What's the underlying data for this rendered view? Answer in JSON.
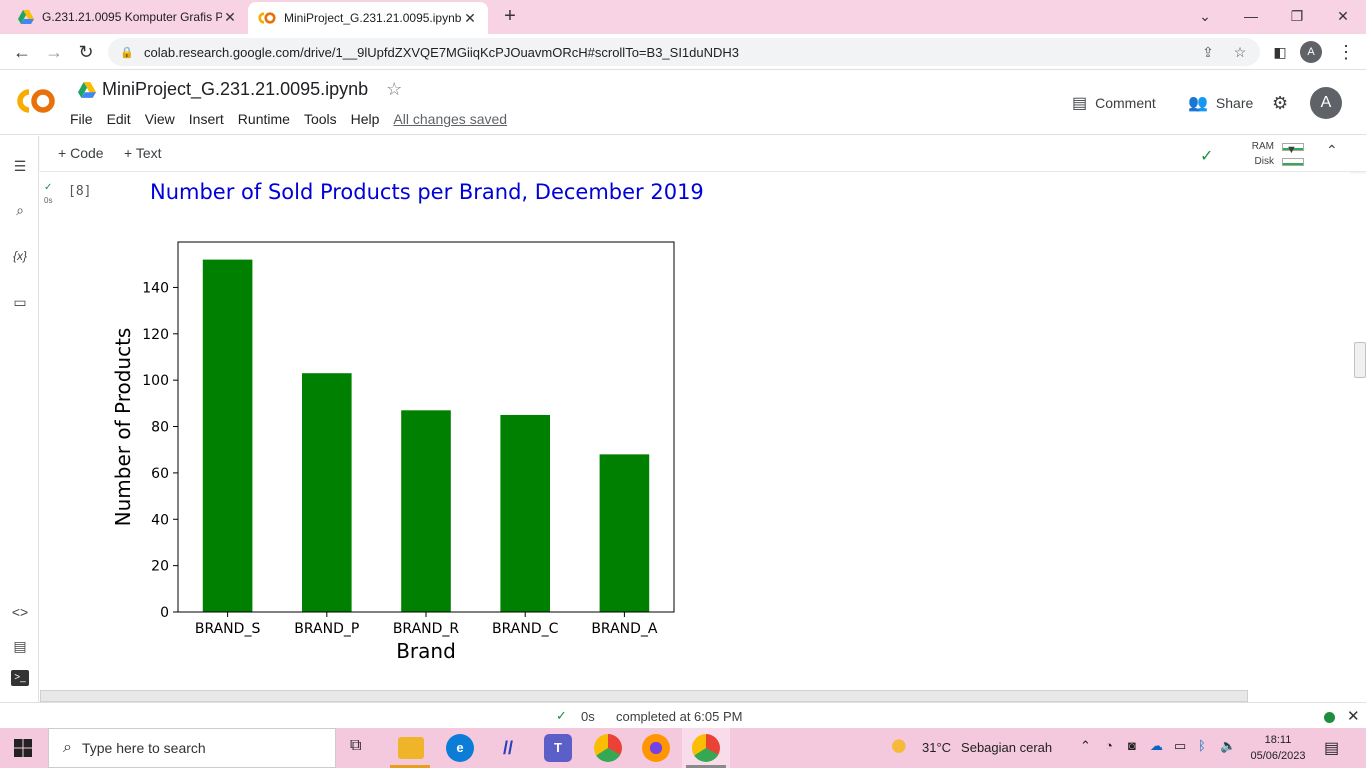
{
  "browser": {
    "tabs": [
      {
        "title": "G.231.21.0095 Komputer Grafis P",
        "active": false
      },
      {
        "title": "MiniProject_G.231.21.0095.ipynb",
        "active": true
      }
    ],
    "url": "colab.research.google.com/drive/1__9lUpfdZXVQE7MGiiqKcPJOuavmORcH#scrollTo=B3_SI1duNDH3",
    "profile_initial": "A"
  },
  "colab": {
    "notebook_title": "MiniProject_G.231.21.0095.ipynb",
    "menu": [
      "File",
      "Edit",
      "View",
      "Insert",
      "Runtime",
      "Tools",
      "Help"
    ],
    "saved_status": "All changes saved",
    "comment_label": "Comment",
    "share_label": "Share",
    "avatar_initial": "A",
    "toolbar": {
      "add_code": "Code",
      "add_text": "Text",
      "ram_label": "RAM",
      "disk_label": "Disk"
    }
  },
  "cell": {
    "exec_count": "[8]",
    "run_time": "0s"
  },
  "chart_data": {
    "type": "bar",
    "title": "Number of Sold Products per Brand, December 2019",
    "xlabel": "Brand",
    "ylabel": "Number of Products",
    "categories": [
      "BRAND_S",
      "BRAND_P",
      "BRAND_R",
      "BRAND_C",
      "BRAND_A"
    ],
    "values": [
      152,
      103,
      87,
      85,
      68
    ],
    "ylim": [
      0,
      159.6
    ],
    "yticks": [
      0,
      20,
      40,
      60,
      80,
      100,
      120,
      140
    ],
    "bar_color": "#008000",
    "title_color": "#0000d8",
    "grid": false
  },
  "statusbar": {
    "duration": "0s",
    "completed": "completed at 6:05 PM"
  },
  "taskbar": {
    "search_placeholder": "Type here to search",
    "weather_temp": "31°C",
    "weather_desc": "Sebagian cerah",
    "time": "18:11",
    "date": "05/06/2023"
  }
}
